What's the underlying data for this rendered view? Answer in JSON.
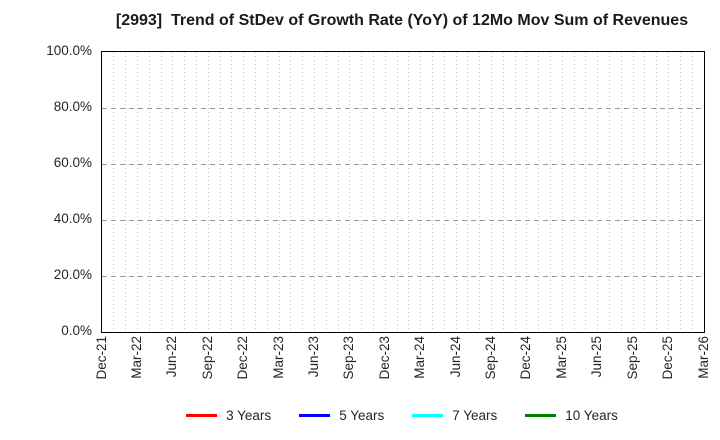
{
  "title": "[2993]  Trend of StDev of Growth Rate (YoY) of 12Mo Mov Sum of Revenues",
  "chart_data": {
    "type": "line",
    "title": "[2993]  Trend of StDev of Growth Rate (YoY) of 12Mo Mov Sum of Revenues",
    "xlabel": "",
    "ylabel": "",
    "x_tick_labels": [
      "Dec-21",
      "Mar-22",
      "Jun-22",
      "Sep-22",
      "Dec-22",
      "Mar-23",
      "Jun-23",
      "Sep-23",
      "Dec-23",
      "Mar-24",
      "Jun-24",
      "Sep-24",
      "Dec-24",
      "Mar-25",
      "Jun-25",
      "Sep-25",
      "Dec-25",
      "Mar-26"
    ],
    "months_per_tick_interval": 3,
    "minor_vertical_gridlines": "monthly",
    "y_tick_values": [
      0,
      20,
      40,
      60,
      80,
      100
    ],
    "y_tick_labels": [
      "0.0%",
      "20.0%",
      "40.0%",
      "60.0%",
      "80.0%",
      "100.0%"
    ],
    "ylim": [
      0,
      100
    ],
    "grid": true,
    "legend_position": "bottom-center",
    "series": [
      {
        "name": "3 Years",
        "color": "#ff0000",
        "values": []
      },
      {
        "name": "5 Years",
        "color": "#0000ff",
        "values": []
      },
      {
        "name": "7 Years",
        "color": "#00ffff",
        "values": []
      },
      {
        "name": "10 Years",
        "color": "#008000",
        "values": []
      }
    ],
    "note": "Axes and grid are drawn but no data lines are plotted (empty chart)."
  },
  "colors": {
    "background": "#ffffff",
    "text": "#262626",
    "title_text": "#1a1a1a",
    "axis_frame": "#000000",
    "grid_vertical": "#c4c4c4",
    "grid_horizontal": "#9a9a9a",
    "series_3_years": "#ff0000",
    "series_5_years": "#0000ff",
    "series_7_years": "#00ffff",
    "series_10_years": "#008000"
  }
}
